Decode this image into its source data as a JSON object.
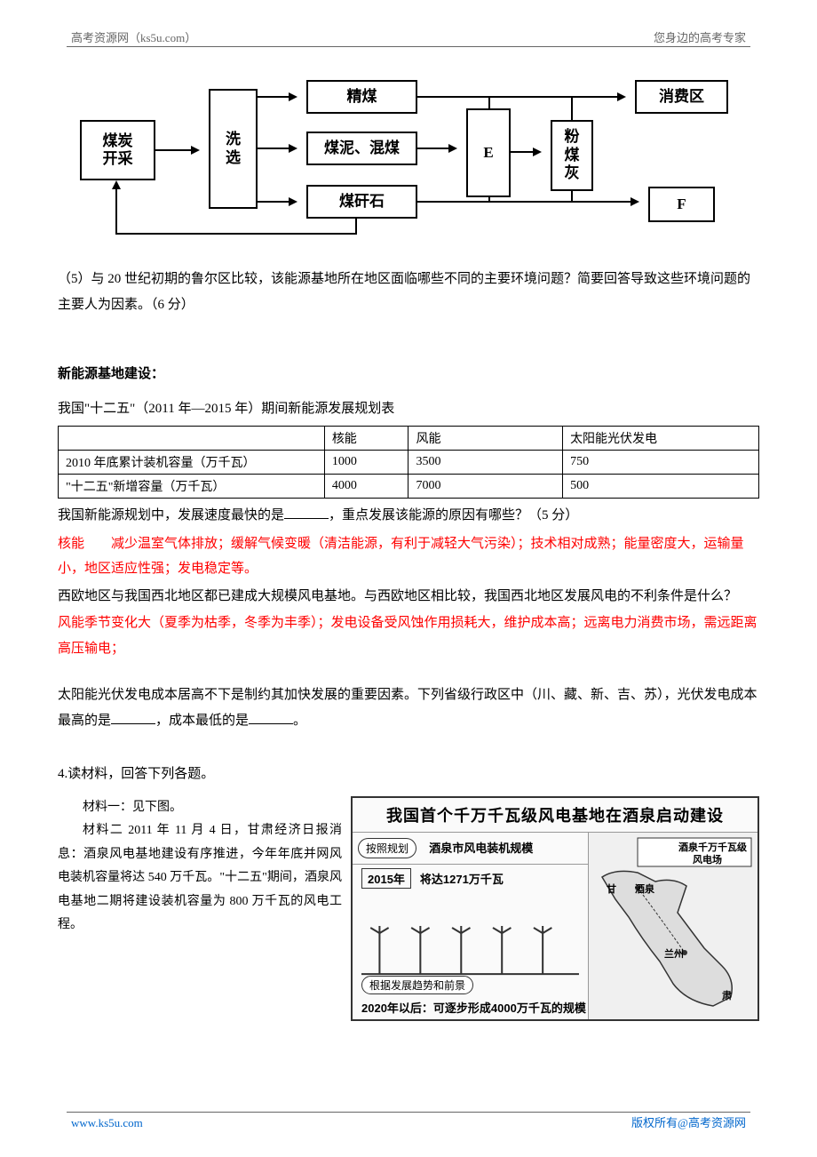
{
  "header": {
    "left": "高考资源网（ks5u.com）",
    "right": "您身边的高考专家"
  },
  "flowchart": {
    "coal_mining": "煤炭\n开采",
    "wash": "洗\n选",
    "fine_coal": "精煤",
    "mud_coal": "煤泥、混煤",
    "gangue": "煤矸石",
    "e": "E",
    "ash": "粉\n煤\n灰",
    "consumer": "消费区",
    "f": "F"
  },
  "q5": "（5）与 20 世纪初期的鲁尔区比较，该能源基地所在地区面临哪些不同的主要环境问题？简要回答导致这些环境问题的主要人为因素。（6 分）",
  "section_title": "新能源基地建设：",
  "table_caption": "我国\"十二五\"（2011 年—2015 年）期间新能源发展规划表",
  "table": {
    "cols": [
      "",
      "核能",
      "风能",
      "太阳能光伏发电"
    ],
    "rows": [
      [
        "2010 年底累计装机容量（万千瓦）",
        "1000",
        "3500",
        "750"
      ],
      [
        "\"十二五\"新增容量（万千瓦）",
        "4000",
        "7000",
        "500"
      ]
    ],
    "col_widths": [
      "38%",
      "12%",
      "22%",
      "28%"
    ]
  },
  "q_plan_a": "我国新能源规划中，发展速度最快的是",
  "q_plan_b": "，重点发展该能源的原因有哪些？（5 分）",
  "ans_plan": "核能　　减少温室气体排放；缓解气候变暖（清洁能源，有利于减轻大气污染）；技术相对成熟；能量密度大，运输量小，地区适应性强；发电稳定等。",
  "q_wind": "西欧地区与我国西北地区都已建成大规模风电基地。与西欧地区相比较，我国西北地区发展风电的不利条件是什么？",
  "ans_wind": "风能季节变化大（夏季为枯季，冬季为丰季）；发电设备受风蚀作用损耗大，维护成本高；远离电力消费市场，需远距离高压输电；",
  "q_solar_a": "太阳能光伏发电成本居高不下是制约其加快发展的重要因素。下列省级行政区中（川、藏、新、吉、苏），光伏发电成本最高的是",
  "q_solar_b": "，成本最低的是",
  "q_solar_c": "。",
  "q4_title": "4.读材料，回答下列各题。",
  "m1": "材料一：见下图。",
  "m2": "材料二 2011 年 11 月 4 日，甘肃经济日报消息：酒泉风电基地建设有序推进，今年年底并网风电装机容量将达 540 万千瓦。\"十二五\"期间，酒泉风电基地二期将建设装机容量为 800 万千瓦的风电工程。",
  "infographic": {
    "title": "我国首个千万千瓦级风电基地在酒泉启动建设",
    "plan_label": "按照规划",
    "plan_text": "酒泉市风电装机规模",
    "year": "2015年",
    "year_text": "将达1271万千瓦",
    "trend_label": "根据发展趋势和前景",
    "bottom": "2020年以后：可逐步形成4000万千瓦的规模",
    "map_label1": "酒泉千万千瓦级",
    "map_label2": "风电场",
    "gan": "甘",
    "jiuquan": "酒泉",
    "lanzhou": "兰州",
    "su": "肃"
  },
  "footer": {
    "left": "www.ks5u.com",
    "right": "版权所有@高考资源网"
  },
  "colors": {
    "red": "#ff0000",
    "link": "#0066cc",
    "header_text": "#666666"
  }
}
